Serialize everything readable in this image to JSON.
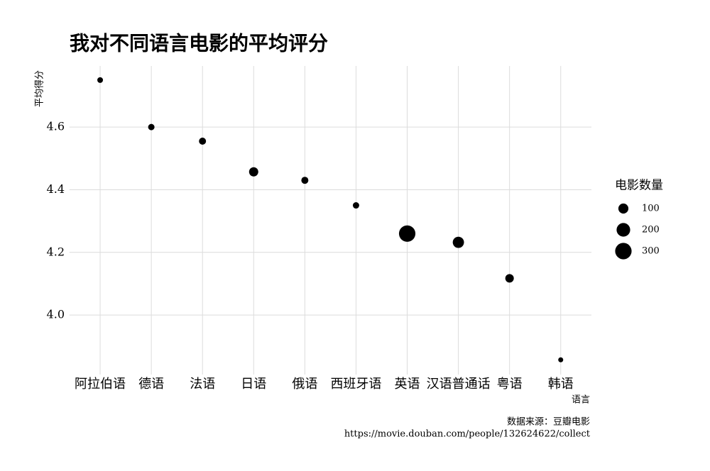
{
  "chart_data": {
    "type": "scatter",
    "title": "我对不同语言电影的平均评分",
    "x_label": "语言",
    "y_label": "平均得分",
    "categories": [
      "阿拉伯语",
      "德语",
      "法语",
      "日语",
      "俄语",
      "西班牙语",
      "英语",
      "汉语普通话",
      "粤语",
      "韩语"
    ],
    "values": [
      4.75,
      4.6,
      4.555,
      4.457,
      4.43,
      4.35,
      4.26,
      4.232,
      4.117,
      3.857
    ],
    "sizes": [
      19,
      29,
      40,
      81,
      40,
      29,
      300,
      130,
      67,
      10
    ],
    "color": "#000000",
    "ylim": [
      3.81,
      4.795
    ],
    "yticks": [
      {
        "value": 4,
        "label": "4.0"
      },
      4.2,
      4.4,
      {
        "value": 4.6,
        "label": "4.6"
      }
    ],
    "grid": true,
    "legend": {
      "title": "电影数量",
      "values": [
        100,
        200,
        300
      ],
      "position": "right"
    },
    "caption": [
      "数据来源：豆瓣电影",
      "https://movie.douban.com/people/132624622/collect"
    ]
  }
}
